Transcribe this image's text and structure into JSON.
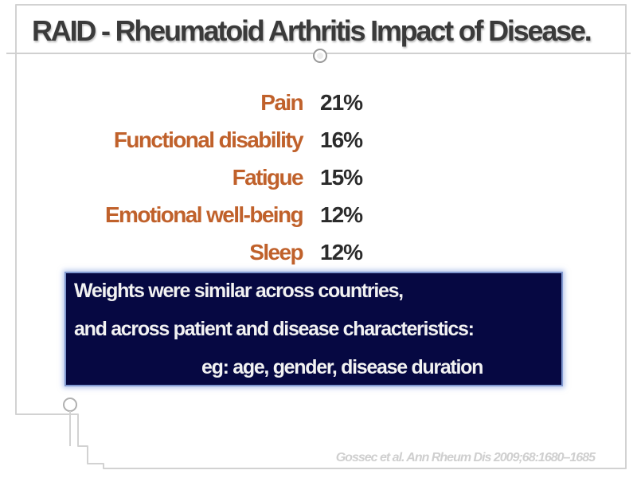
{
  "slide": {
    "title": "RAID - Rheumatoid Arthritis Impact of Disease.",
    "metrics": [
      {
        "label": "Pain",
        "value": "21%"
      },
      {
        "label": "Functional disability",
        "value": "16%"
      },
      {
        "label": "Fatigue",
        "value": "15%"
      },
      {
        "label": "Emotional well-being",
        "value": "12%"
      },
      {
        "label": "Sleep",
        "value": "12%"
      }
    ],
    "note": {
      "line1": "Weights were similar across countries,",
      "line2": "and across patient and disease characteristics:",
      "line3": "eg: age, gender, disease duration"
    },
    "citation": "Gossec et al. Ann Rheum Dis 2009;68:1680–1685"
  },
  "colors": {
    "label": "#c0612b",
    "value": "#2b2b2b",
    "note_background": "#060842",
    "note_border": "#7f97cf"
  }
}
